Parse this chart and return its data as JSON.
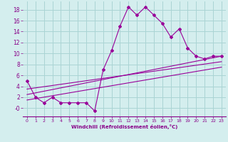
{
  "bg_color": "#d4eeee",
  "grid_color": "#aad4d4",
  "line_color": "#990099",
  "xlabel": "Windchill (Refroidissement éolien,°C)",
  "xlabel_color": "#880088",
  "tick_color": "#880088",
  "xlim": [
    -0.5,
    23.5
  ],
  "ylim": [
    -1.5,
    19.5
  ],
  "yticks": [
    0,
    2,
    4,
    6,
    8,
    10,
    12,
    14,
    16,
    18
  ],
  "xticks": [
    0,
    1,
    2,
    3,
    4,
    5,
    6,
    7,
    8,
    9,
    10,
    11,
    12,
    13,
    14,
    15,
    16,
    17,
    18,
    19,
    20,
    21,
    22,
    23
  ],
  "series1_x": [
    0,
    1,
    2,
    3,
    4,
    5,
    6,
    7,
    8,
    9,
    10,
    11,
    12,
    13,
    14,
    15,
    16,
    17,
    18,
    19,
    20,
    21,
    22,
    23
  ],
  "series1_y": [
    5,
    2,
    1,
    2,
    1,
    1,
    1,
    1,
    -0.5,
    7,
    10.5,
    15,
    18.5,
    17,
    18.5,
    17,
    15.5,
    13,
    14.5,
    11,
    9.5,
    9,
    9.5,
    9.5
  ],
  "series2_x": [
    0,
    23
  ],
  "series2_y": [
    2.5,
    9.5
  ],
  "series3_x": [
    0,
    23
  ],
  "series3_y": [
    3.5,
    8.5
  ],
  "series4_x": [
    0,
    23
  ],
  "series4_y": [
    1.5,
    7.5
  ]
}
